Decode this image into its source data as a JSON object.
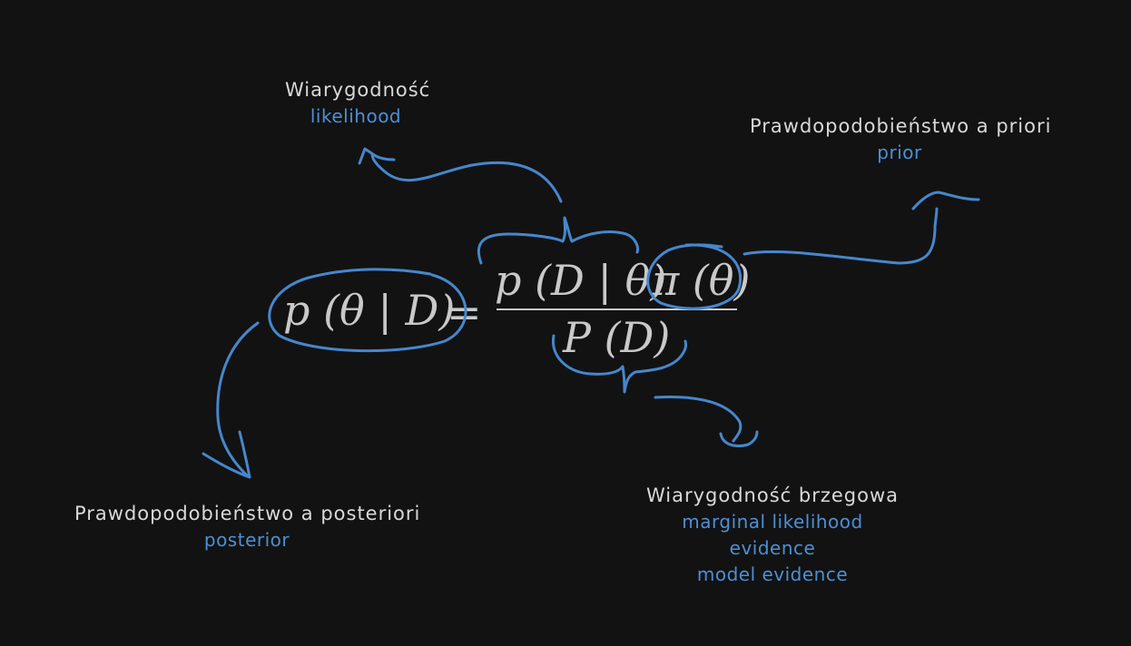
{
  "formula": {
    "lhs": "p (θ | D)",
    "equals": "=",
    "numerator_likelihood": "p (D | θ)",
    "numerator_prior": "π (θ)",
    "denominator": "P (D)"
  },
  "annotations": {
    "likelihood": {
      "pl": "Wiarygodność",
      "en": "likelihood"
    },
    "prior": {
      "pl": "Prawdopodobieństwo a priori",
      "en": "prior"
    },
    "posterior": {
      "pl": "Prawdopodobieństwo a posteriori",
      "en": "posterior"
    },
    "evidence": {
      "pl": "Wiarygodność brzegowa",
      "en_lines": [
        "marginal likelihood",
        "evidence",
        "model evidence"
      ]
    }
  },
  "colors": {
    "background": "#121212",
    "accent": "#4687cd",
    "text": "#d9d9d9",
    "math": "#c9c9c9"
  }
}
